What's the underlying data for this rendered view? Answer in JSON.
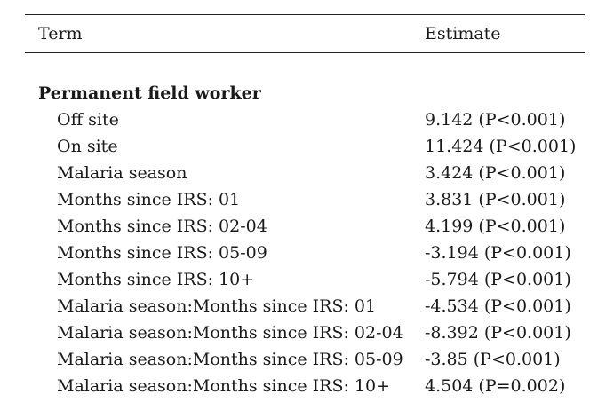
{
  "table": {
    "headers": {
      "term": "Term",
      "estimate": "Estimate"
    },
    "section": "Permanent field worker",
    "rows": [
      {
        "term": "Off site",
        "estimate": "9.142 (P<0.001)"
      },
      {
        "term": "On site",
        "estimate": "11.424 (P<0.001)"
      },
      {
        "term": "Malaria season",
        "estimate": "3.424 (P<0.001)"
      },
      {
        "term": "Months since IRS: 01",
        "estimate": "3.831 (P<0.001)"
      },
      {
        "term": "Months since IRS: 02-04",
        "estimate": "4.199 (P<0.001)"
      },
      {
        "term": "Months since IRS: 05-09",
        "estimate": "-3.194 (P<0.001)"
      },
      {
        "term": "Months since IRS: 10+",
        "estimate": "-5.794 (P<0.001)"
      },
      {
        "term": "Malaria season:Months since IRS: 01",
        "estimate": "-4.534 (P<0.001)"
      },
      {
        "term": "Malaria season:Months since IRS: 02-04",
        "estimate": "-8.392 (P<0.001)"
      },
      {
        "term": "Malaria season:Months since IRS: 05-09",
        "estimate": "-3.85 (P<0.001)"
      },
      {
        "term": "Malaria season:Months since IRS: 10+",
        "estimate": "4.504 (P=0.002)"
      }
    ]
  }
}
